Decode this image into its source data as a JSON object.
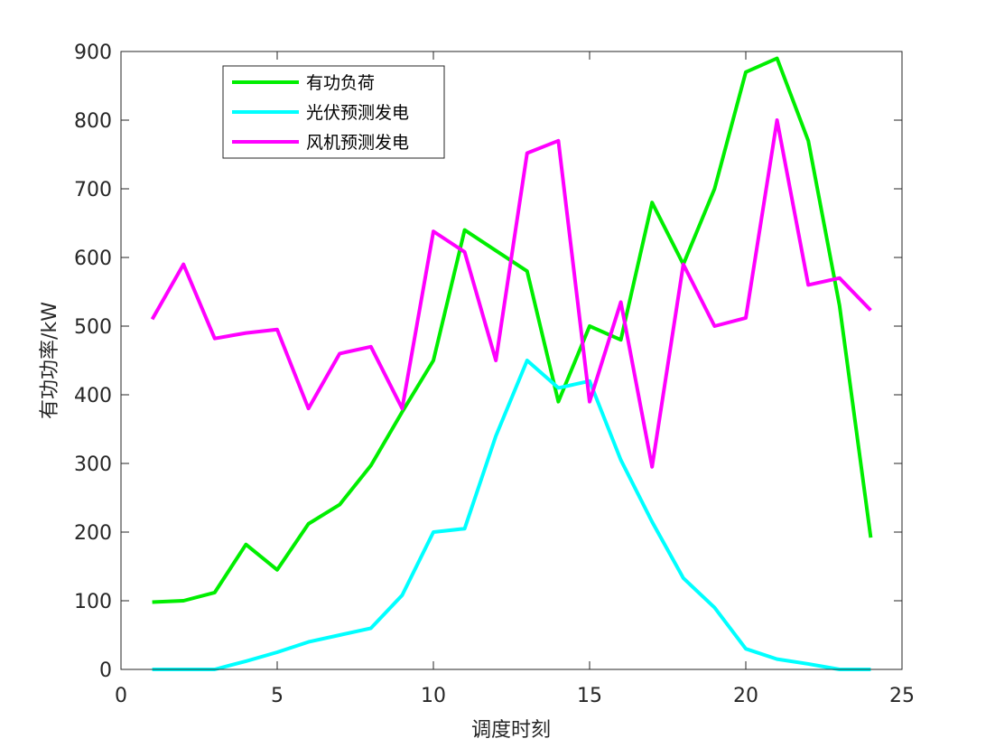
{
  "chart_data": {
    "type": "line",
    "xlabel": "调度时刻",
    "ylabel": "有功功率/kW",
    "x": [
      1,
      2,
      3,
      4,
      5,
      6,
      7,
      8,
      9,
      10,
      11,
      12,
      13,
      14,
      15,
      16,
      17,
      18,
      19,
      20,
      21,
      22,
      23,
      24
    ],
    "series": [
      {
        "name": "有功负荷",
        "color": "#00ee00",
        "values": [
          98,
          100,
          112,
          182,
          145,
          212,
          240,
          297,
          375,
          450,
          640,
          610,
          580,
          390,
          500,
          480,
          680,
          590,
          700,
          870,
          890,
          770,
          530,
          192
        ]
      },
      {
        "name": "光伏预测发电",
        "color": "#00ffff",
        "values": [
          0,
          0,
          0,
          12,
          25,
          40,
          50,
          60,
          108,
          200,
          205,
          340,
          450,
          410,
          420,
          305,
          215,
          133,
          90,
          30,
          15,
          8,
          0,
          0
        ]
      },
      {
        "name": "风机预测发电",
        "color": "#ff00ff",
        "values": [
          510,
          590,
          482,
          490,
          495,
          380,
          460,
          470,
          380,
          638,
          608,
          450,
          752,
          770,
          390,
          535,
          295,
          590,
          500,
          512,
          800,
          560,
          570,
          523
        ]
      }
    ],
    "xlim": [
      0,
      25
    ],
    "xticks": [
      0,
      5,
      10,
      15,
      20,
      25
    ],
    "ylim": [
      0,
      900
    ],
    "yticks": [
      0,
      100,
      200,
      300,
      400,
      500,
      600,
      700,
      800,
      900
    ],
    "legend": "upper-left"
  }
}
